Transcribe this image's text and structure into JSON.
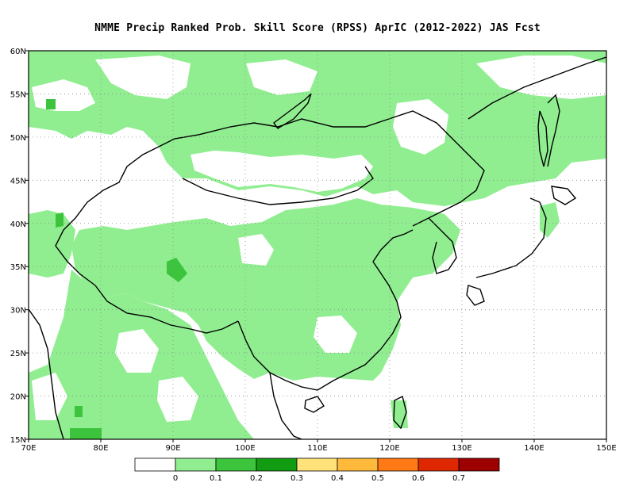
{
  "title": "NMME Precip Ranked Prob. Skill Score (RPSS) AprIC (2012-2022) JAS Fcst",
  "map": {
    "lon_range": [
      70,
      150
    ],
    "lat_range": [
      15,
      60
    ],
    "lat_ticks": [
      {
        "value": 60,
        "label": "60N"
      },
      {
        "value": 55,
        "label": "55N"
      },
      {
        "value": 50,
        "label": "50N"
      },
      {
        "value": 45,
        "label": "45N"
      },
      {
        "value": 40,
        "label": "40N"
      },
      {
        "value": 35,
        "label": "35N"
      },
      {
        "value": 30,
        "label": "30N"
      },
      {
        "value": 25,
        "label": "25N"
      },
      {
        "value": 20,
        "label": "20N"
      },
      {
        "value": 15,
        "label": "15N"
      }
    ],
    "lon_ticks": [
      {
        "value": 70,
        "label": "70E"
      },
      {
        "value": 80,
        "label": "80E"
      },
      {
        "value": 90,
        "label": "90E"
      },
      {
        "value": 100,
        "label": "100E"
      },
      {
        "value": 110,
        "label": "110E"
      },
      {
        "value": 120,
        "label": "120E"
      },
      {
        "value": 130,
        "label": "130E"
      },
      {
        "value": 140,
        "label": "140E"
      },
      {
        "value": 150,
        "label": "150E"
      }
    ],
    "grid": "dotted",
    "colors": {
      "low": "#90ee90",
      "mid": "#3cc43c",
      "coast": "#000000"
    }
  },
  "colorbar": {
    "colors": [
      "#ffffff",
      "#90ee90",
      "#3cc43c",
      "#129c12",
      "#ffe27a",
      "#ffba3c",
      "#ff7a14",
      "#e02800",
      "#9c0000"
    ],
    "labels": [
      "0",
      "0.1",
      "0.2",
      "0.3",
      "0.4",
      "0.5",
      "0.6",
      "0.7"
    ]
  }
}
